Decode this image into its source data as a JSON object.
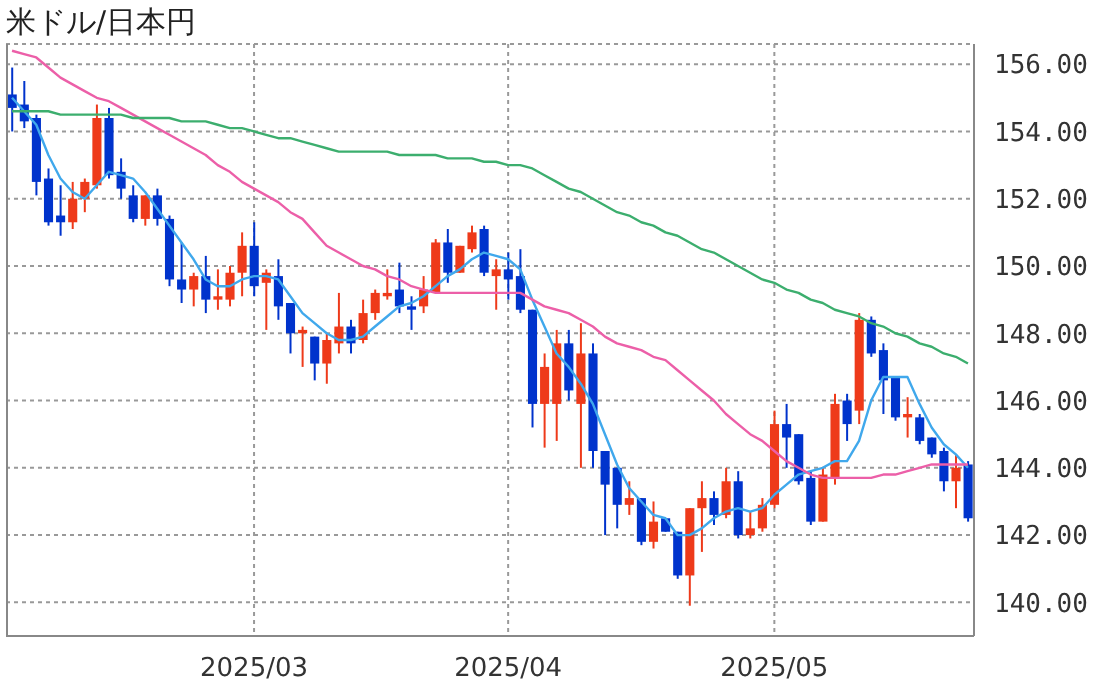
{
  "chart_data": {
    "type": "candlestick",
    "title": "米ドル/日本円",
    "categories": [
      null,
      null,
      null,
      null,
      null,
      null,
      null,
      null,
      null,
      null,
      null,
      null,
      null,
      null,
      null,
      null,
      null,
      null,
      null,
      null,
      "2025/03",
      null,
      null,
      null,
      null,
      null,
      null,
      null,
      null,
      null,
      null,
      null,
      null,
      null,
      null,
      null,
      null,
      null,
      null,
      null,
      null,
      "2025/04",
      null,
      null,
      null,
      null,
      null,
      null,
      null,
      null,
      null,
      null,
      null,
      null,
      null,
      null,
      null,
      null,
      null,
      null,
      null,
      null,
      null,
      "2025/05",
      null,
      null,
      null,
      null,
      null,
      null,
      null,
      null,
      null,
      null,
      null,
      null,
      null,
      null,
      null,
      null
    ],
    "ohlc": [
      [
        155.1,
        155.9,
        154.0,
        154.7
      ],
      [
        154.8,
        155.5,
        154.1,
        154.3
      ],
      [
        154.4,
        154.5,
        152.1,
        152.5
      ],
      [
        152.6,
        152.9,
        151.2,
        151.3
      ],
      [
        151.5,
        152.4,
        150.9,
        151.3
      ],
      [
        151.3,
        152.5,
        151.1,
        152.0
      ],
      [
        152.0,
        152.6,
        151.6,
        152.5
      ],
      [
        152.4,
        154.8,
        152.3,
        154.4
      ],
      [
        154.4,
        154.7,
        152.6,
        152.7
      ],
      [
        152.8,
        153.2,
        152.0,
        152.3
      ],
      [
        152.1,
        152.4,
        151.3,
        151.4
      ],
      [
        151.4,
        152.1,
        151.2,
        152.1
      ],
      [
        152.1,
        152.3,
        151.2,
        151.4
      ],
      [
        151.4,
        151.5,
        149.4,
        149.6
      ],
      [
        149.6,
        150.7,
        148.9,
        149.3
      ],
      [
        149.3,
        149.8,
        148.8,
        149.7
      ],
      [
        149.7,
        150.3,
        148.6,
        149.0
      ],
      [
        149.0,
        149.9,
        148.7,
        149.1
      ],
      [
        149.0,
        150.0,
        148.8,
        149.8
      ],
      [
        149.8,
        151.0,
        149.1,
        150.6
      ],
      [
        150.6,
        151.3,
        149.1,
        149.4
      ],
      [
        149.5,
        149.9,
        148.1,
        149.8
      ],
      [
        149.7,
        150.2,
        148.4,
        148.8
      ],
      [
        148.9,
        148.9,
        147.4,
        148.0
      ],
      [
        148.0,
        148.2,
        147.0,
        148.1
      ],
      [
        147.9,
        147.9,
        146.6,
        147.1
      ],
      [
        147.1,
        148.0,
        146.5,
        147.8
      ],
      [
        147.7,
        149.2,
        147.4,
        148.2
      ],
      [
        148.2,
        148.4,
        147.4,
        147.7
      ],
      [
        147.8,
        149.0,
        147.7,
        148.6
      ],
      [
        148.6,
        149.3,
        148.4,
        149.2
      ],
      [
        149.1,
        149.9,
        149.0,
        149.2
      ],
      [
        149.3,
        150.1,
        148.6,
        148.8
      ],
      [
        148.8,
        149.1,
        148.1,
        148.7
      ],
      [
        148.8,
        149.7,
        148.6,
        149.3
      ],
      [
        149.2,
        150.8,
        149.2,
        150.7
      ],
      [
        150.7,
        151.1,
        149.5,
        149.8
      ],
      [
        149.8,
        150.6,
        149.8,
        150.6
      ],
      [
        150.5,
        151.2,
        150.4,
        151.0
      ],
      [
        151.1,
        151.2,
        149.7,
        149.8
      ],
      [
        149.7,
        150.2,
        148.7,
        149.9
      ],
      [
        149.9,
        150.4,
        149.0,
        149.6
      ],
      [
        149.7,
        150.5,
        148.6,
        148.7
      ],
      [
        148.7,
        148.7,
        145.2,
        145.9
      ],
      [
        145.9,
        147.4,
        144.6,
        147.0
      ],
      [
        145.9,
        148.1,
        144.8,
        147.7
      ],
      [
        147.7,
        148.1,
        146.0,
        146.3
      ],
      [
        145.9,
        148.3,
        144.0,
        147.4
      ],
      [
        147.4,
        147.7,
        144.0,
        144.5
      ],
      [
        144.5,
        144.5,
        142.0,
        143.5
      ],
      [
        144.0,
        144.0,
        142.2,
        142.9
      ],
      [
        142.9,
        143.6,
        142.6,
        143.1
      ],
      [
        143.1,
        143.1,
        141.7,
        141.8
      ],
      [
        141.8,
        143.0,
        141.6,
        142.4
      ],
      [
        142.5,
        142.5,
        142.1,
        142.1
      ],
      [
        142.1,
        142.1,
        140.7,
        140.8
      ],
      [
        140.8,
        142.8,
        139.9,
        142.8
      ],
      [
        142.8,
        143.6,
        141.5,
        143.1
      ],
      [
        143.1,
        143.3,
        142.3,
        142.6
      ],
      [
        142.6,
        144.0,
        142.5,
        143.6
      ],
      [
        143.6,
        143.9,
        141.9,
        142.0
      ],
      [
        142.0,
        142.7,
        141.9,
        142.2
      ],
      [
        142.2,
        143.1,
        142.1,
        142.9
      ],
      [
        142.9,
        145.7,
        142.8,
        145.3
      ],
      [
        145.3,
        145.9,
        144.0,
        144.9
      ],
      [
        145.0,
        145.0,
        143.5,
        143.6
      ],
      [
        143.7,
        143.9,
        142.3,
        142.4
      ],
      [
        142.4,
        144.0,
        142.4,
        143.8
      ],
      [
        143.7,
        146.2,
        143.5,
        145.9
      ],
      [
        146.0,
        146.2,
        144.8,
        145.3
      ],
      [
        145.7,
        148.6,
        145.3,
        148.4
      ],
      [
        148.4,
        148.5,
        147.3,
        147.4
      ],
      [
        147.5,
        147.7,
        145.6,
        146.6
      ],
      [
        146.7,
        146.7,
        145.4,
        145.5
      ],
      [
        145.5,
        146.1,
        144.9,
        145.6
      ],
      [
        145.5,
        145.6,
        144.7,
        144.8
      ],
      [
        144.9,
        144.9,
        144.3,
        144.4
      ],
      [
        144.5,
        144.6,
        143.3,
        143.6
      ],
      [
        143.6,
        144.4,
        142.8,
        144.0
      ],
      [
        144.1,
        144.2,
        142.4,
        142.5
      ]
    ],
    "colors": [
      "#0033cc",
      "#0033cc",
      "#0033cc",
      "#0033cc",
      "#0033cc",
      "#ee3a1a",
      "#ee3a1a",
      "#ee3a1a",
      "#0033cc",
      "#0033cc",
      "#0033cc",
      "#ee3a1a",
      "#0033cc",
      "#0033cc",
      "#0033cc",
      "#ee3a1a",
      "#0033cc",
      "#ee3a1a",
      "#ee3a1a",
      "#ee3a1a",
      "#0033cc",
      "#ee3a1a",
      "#0033cc",
      "#0033cc",
      "#ee3a1a",
      "#0033cc",
      "#ee3a1a",
      "#ee3a1a",
      "#0033cc",
      "#ee3a1a",
      "#ee3a1a",
      "#ee3a1a",
      "#0033cc",
      "#0033cc",
      "#ee3a1a",
      "#ee3a1a",
      "#0033cc",
      "#ee3a1a",
      "#ee3a1a",
      "#0033cc",
      "#ee3a1a",
      "#0033cc",
      "#0033cc",
      "#0033cc",
      "#ee3a1a",
      "#ee3a1a",
      "#0033cc",
      "#ee3a1a",
      "#0033cc",
      "#0033cc",
      "#0033cc",
      "#ee3a1a",
      "#0033cc",
      "#ee3a1a",
      "#0033cc",
      "#0033cc",
      "#ee3a1a",
      "#ee3a1a",
      "#0033cc",
      "#ee3a1a",
      "#0033cc",
      "#ee3a1a",
      "#ee3a1a",
      "#ee3a1a",
      "#0033cc",
      "#0033cc",
      "#0033cc",
      "#ee3a1a",
      "#ee3a1a",
      "#0033cc",
      "#ee3a1a",
      "#0033cc",
      "#0033cc",
      "#0033cc",
      "#ee3a1a",
      "#0033cc",
      "#0033cc",
      "#0033cc",
      "#ee3a1a",
      "#0033cc"
    ],
    "series": [
      {
        "type": "line",
        "color": "#40a8ec",
        "values": [
          155.0,
          154.6,
          154.2,
          153.3,
          152.6,
          152.2,
          152.0,
          152.4,
          152.8,
          152.7,
          152.6,
          152.2,
          151.7,
          151.2,
          150.7,
          150.2,
          149.6,
          149.4,
          149.4,
          149.6,
          149.7,
          149.7,
          149.6,
          149.1,
          148.6,
          148.3,
          148.0,
          147.8,
          147.8,
          147.9,
          148.2,
          148.5,
          148.8,
          148.9,
          149.1,
          149.4,
          149.7,
          149.9,
          150.2,
          150.4,
          150.3,
          150.2,
          149.9,
          149.0,
          148.2,
          147.4,
          147.0,
          146.5,
          145.9,
          145.0,
          144.1,
          143.4,
          143.0,
          142.6,
          142.5,
          142.0,
          142.0,
          142.2,
          142.5,
          142.7,
          142.8,
          142.7,
          142.8,
          143.2,
          143.5,
          143.8,
          143.9,
          144.0,
          144.2,
          144.2,
          144.8,
          146.0,
          146.7,
          146.7,
          146.7,
          145.9,
          145.2,
          144.7,
          144.4,
          144.0
        ]
      },
      {
        "type": "line",
        "color": "#ec5fa8",
        "values": [
          156.4,
          156.3,
          156.2,
          155.9,
          155.6,
          155.4,
          155.2,
          155.0,
          154.9,
          154.7,
          154.5,
          154.3,
          154.1,
          153.9,
          153.7,
          153.5,
          153.3,
          153.0,
          152.8,
          152.5,
          152.3,
          152.1,
          151.9,
          151.6,
          151.4,
          151.0,
          150.6,
          150.4,
          150.2,
          150.0,
          149.9,
          149.7,
          149.6,
          149.4,
          149.3,
          149.2,
          149.2,
          149.2,
          149.2,
          149.2,
          149.2,
          149.2,
          149.2,
          149.0,
          148.8,
          148.7,
          148.6,
          148.4,
          148.2,
          147.9,
          147.7,
          147.6,
          147.5,
          147.3,
          147.2,
          146.9,
          146.6,
          146.3,
          146.0,
          145.6,
          145.3,
          145.0,
          144.8,
          144.5,
          144.2,
          144.0,
          143.8,
          143.7,
          143.7,
          143.7,
          143.7,
          143.7,
          143.8,
          143.8,
          143.9,
          144.0,
          144.1,
          144.1,
          144.1,
          144.1
        ]
      },
      {
        "type": "line",
        "color": "#3cae6e",
        "values": [
          154.6,
          154.6,
          154.6,
          154.6,
          154.5,
          154.5,
          154.5,
          154.5,
          154.5,
          154.5,
          154.4,
          154.4,
          154.4,
          154.4,
          154.3,
          154.3,
          154.3,
          154.2,
          154.1,
          154.1,
          154.0,
          153.9,
          153.8,
          153.8,
          153.7,
          153.6,
          153.5,
          153.4,
          153.4,
          153.4,
          153.4,
          153.4,
          153.3,
          153.3,
          153.3,
          153.3,
          153.2,
          153.2,
          153.2,
          153.1,
          153.1,
          153.0,
          153.0,
          152.9,
          152.7,
          152.5,
          152.3,
          152.2,
          152.0,
          151.8,
          151.6,
          151.5,
          151.3,
          151.2,
          151.0,
          150.9,
          150.7,
          150.5,
          150.4,
          150.2,
          150.0,
          149.8,
          149.6,
          149.5,
          149.3,
          149.2,
          149.0,
          148.9,
          148.7,
          148.6,
          148.5,
          148.3,
          148.2,
          148.0,
          147.9,
          147.7,
          147.6,
          147.4,
          147.3,
          147.1
        ]
      }
    ],
    "ylim": [
      139,
      156.6
    ],
    "yticks": [
      {
        "value": 140,
        "label": "140.00"
      },
      {
        "value": 142,
        "label": "142.00"
      },
      {
        "value": 144,
        "label": "144.00"
      },
      {
        "value": 146,
        "label": "146.00"
      },
      {
        "value": 148,
        "label": "148.00"
      },
      {
        "value": 150,
        "label": "150.00"
      },
      {
        "value": 152,
        "label": "152.00"
      },
      {
        "value": 154,
        "label": "154.00"
      },
      {
        "value": 156,
        "label": "156.00"
      }
    ],
    "grid": true,
    "marker": "none",
    "legend": false
  }
}
